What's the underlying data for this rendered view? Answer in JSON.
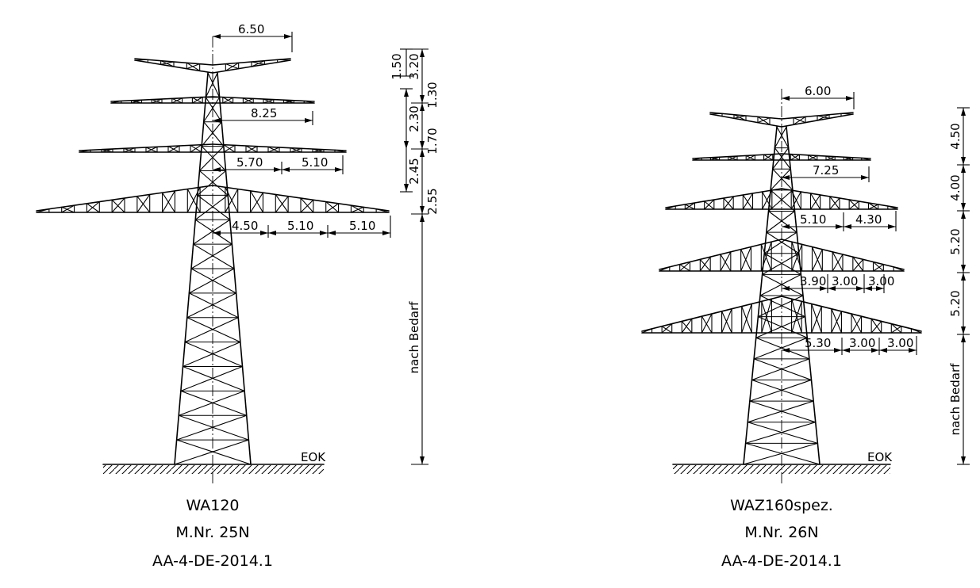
{
  "towers": [
    {
      "name": "WA120",
      "mast_no": "M.Nr. 25N",
      "doc_ref": "AA-4-DE-2014.1",
      "ground_label": "EOK",
      "arm_widths": [
        "6.50",
        "8.25",
        "5.70",
        "5.10",
        "4.50",
        "5.10",
        "5.10"
      ],
      "outer_dims": [
        "1.50",
        "3.20",
        "1.30",
        "2.30",
        "1.70",
        "2.45",
        "2.55"
      ],
      "height_label": "nach Bedarf"
    },
    {
      "name": "WAZ160spez.",
      "mast_no": "M.Nr. 26N",
      "doc_ref": "AA-4-DE-2014.1",
      "ground_label": "EOK",
      "arm_widths": [
        "6.00",
        "7.25",
        "5.10",
        "4.30",
        "3.90",
        "3.00",
        "3.00",
        "5.30",
        "3.00",
        "3.00"
      ],
      "outer_dims": [
        "4.50",
        "4.00",
        "5.20",
        "5.20"
      ],
      "height_label": "nach Bedarf"
    }
  ]
}
